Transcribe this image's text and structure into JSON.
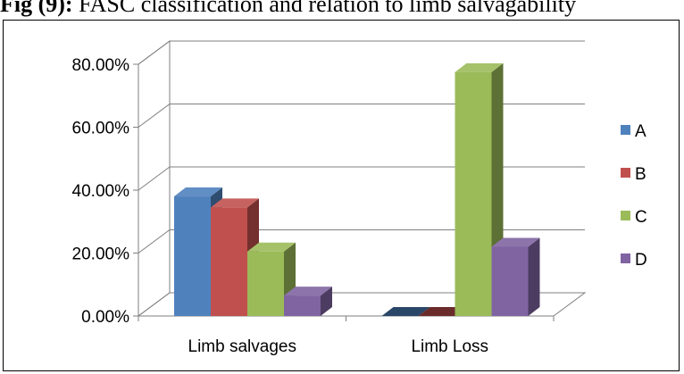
{
  "caption": {
    "prefix": "Fig (9):",
    "text": " FASC classification and relation to limb salvagability"
  },
  "chart_data": {
    "type": "bar",
    "style": "3d-clustered-column",
    "categories": [
      "Limb salvages",
      "Limb Loss"
    ],
    "series": [
      {
        "name": "A",
        "values": [
          0.38,
          0.0
        ],
        "color": "#4F81BD"
      },
      {
        "name": "B",
        "values": [
          0.345,
          0.0
        ],
        "color": "#C0504D"
      },
      {
        "name": "C",
        "values": [
          0.205,
          0.775
        ],
        "color": "#9BBB59"
      },
      {
        "name": "D",
        "values": [
          0.065,
          0.22
        ],
        "color": "#8064A2"
      }
    ],
    "yticks": [
      "0.00%",
      "20.00%",
      "40.00%",
      "60.00%",
      "80.00%"
    ],
    "ylim": [
      0,
      0.8
    ],
    "grid": true,
    "legend": "right"
  }
}
